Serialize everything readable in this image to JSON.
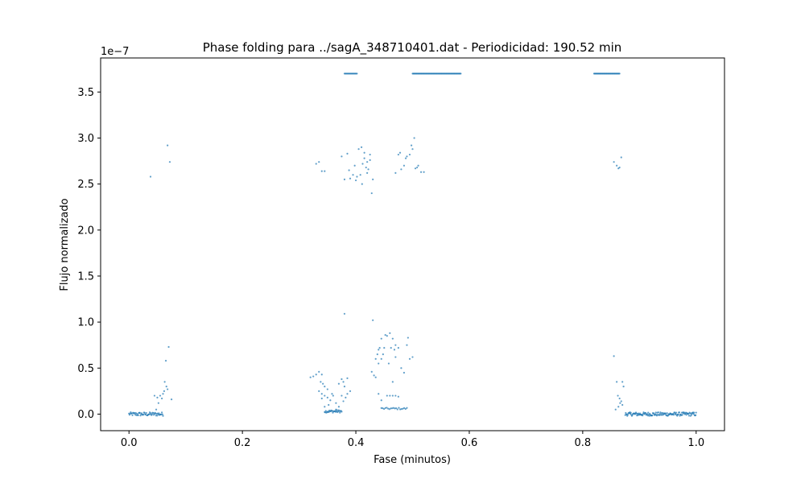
{
  "chart_data": {
    "type": "scatter",
    "title": "Phase folding para ../sagA_348710401.dat - Periodicidad: 190.52 min",
    "xlabel": "Fase (minutos)",
    "ylabel": "Flujo normalizado",
    "offset_text": "1e−7",
    "xlim": [
      -0.05,
      1.05
    ],
    "ylim": [
      -0.18,
      3.87
    ],
    "y_scale_exponent": -7,
    "xticks": [
      0.0,
      0.2,
      0.4,
      0.6,
      0.8,
      1.0
    ],
    "xtick_labels": [
      "0.0",
      "0.2",
      "0.4",
      "0.6",
      "0.8",
      "1.0"
    ],
    "yticks": [
      0.0,
      0.5,
      1.0,
      1.5,
      2.0,
      2.5,
      3.0,
      3.5
    ],
    "ytick_labels": [
      "0.0",
      "0.5",
      "1.0",
      "1.5",
      "2.0",
      "2.5",
      "3.0",
      "3.5"
    ],
    "grid": false,
    "marker_color": "#1f77b4",
    "bands": [
      {
        "x_start": 0.0,
        "x_end": 0.06,
        "y": 0.0,
        "spread": 0.02,
        "count": 60
      },
      {
        "x_start": 0.345,
        "x_end": 0.375,
        "y": 0.03,
        "spread": 0.015,
        "count": 30
      },
      {
        "x_start": 0.445,
        "x_end": 0.49,
        "y": 0.06,
        "spread": 0.01,
        "count": 20
      },
      {
        "x_start": 0.875,
        "x_end": 1.0,
        "y": 0.0,
        "spread": 0.02,
        "count": 140
      },
      {
        "x_start": 0.38,
        "x_end": 0.402,
        "y": 3.7,
        "spread": 0.0,
        "count": 18
      },
      {
        "x_start": 0.5,
        "x_end": 0.585,
        "y": 3.7,
        "spread": 0.0,
        "count": 80
      },
      {
        "x_start": 0.82,
        "x_end": 0.865,
        "y": 3.7,
        "spread": 0.0,
        "count": 45
      }
    ],
    "points": [
      [
        0.038,
        2.58
      ],
      [
        0.068,
        2.92
      ],
      [
        0.072,
        2.74
      ],
      [
        0.07,
        0.73
      ],
      [
        0.065,
        0.58
      ],
      [
        0.063,
        0.35
      ],
      [
        0.066,
        0.3
      ],
      [
        0.068,
        0.27
      ],
      [
        0.062,
        0.25
      ],
      [
        0.06,
        0.22
      ],
      [
        0.055,
        0.2
      ],
      [
        0.05,
        0.18
      ],
      [
        0.045,
        0.2
      ],
      [
        0.058,
        0.17
      ],
      [
        0.075,
        0.16
      ],
      [
        0.052,
        0.12
      ],
      [
        0.048,
        0.05
      ],
      [
        0.33,
        2.72
      ],
      [
        0.335,
        2.74
      ],
      [
        0.34,
        2.64
      ],
      [
        0.345,
        2.64
      ],
      [
        0.375,
        2.8
      ],
      [
        0.38,
        2.55
      ],
      [
        0.385,
        2.83
      ],
      [
        0.39,
        2.56
      ],
      [
        0.395,
        2.6
      ],
      [
        0.4,
        2.54
      ],
      [
        0.405,
        2.88
      ],
      [
        0.41,
        2.9
      ],
      [
        0.412,
        2.72
      ],
      [
        0.415,
        2.78
      ],
      [
        0.418,
        2.68
      ],
      [
        0.42,
        2.74
      ],
      [
        0.422,
        2.66
      ],
      [
        0.425,
        2.76
      ],
      [
        0.402,
        2.58
      ],
      [
        0.408,
        2.6
      ],
      [
        0.428,
        2.4
      ],
      [
        0.43,
        2.55
      ],
      [
        0.415,
        2.84
      ],
      [
        0.42,
        2.62
      ],
      [
        0.411,
        2.5
      ],
      [
        0.425,
        2.82
      ],
      [
        0.398,
        2.7
      ],
      [
        0.388,
        2.65
      ],
      [
        0.47,
        2.62
      ],
      [
        0.475,
        2.82
      ],
      [
        0.48,
        2.66
      ],
      [
        0.485,
        2.7
      ],
      [
        0.49,
        2.8
      ],
      [
        0.495,
        2.82
      ],
      [
        0.5,
        2.88
      ],
      [
        0.503,
        3.0
      ],
      [
        0.505,
        2.67
      ],
      [
        0.51,
        2.7
      ],
      [
        0.515,
        2.63
      ],
      [
        0.52,
        2.63
      ],
      [
        0.478,
        2.84
      ],
      [
        0.488,
        2.78
      ],
      [
        0.498,
        2.92
      ],
      [
        0.508,
        2.68
      ],
      [
        0.32,
        0.4
      ],
      [
        0.325,
        0.41
      ],
      [
        0.33,
        0.43
      ],
      [
        0.335,
        0.46
      ],
      [
        0.34,
        0.43
      ],
      [
        0.338,
        0.35
      ],
      [
        0.342,
        0.33
      ],
      [
        0.345,
        0.3
      ],
      [
        0.35,
        0.27
      ],
      [
        0.335,
        0.25
      ],
      [
        0.34,
        0.22
      ],
      [
        0.345,
        0.2
      ],
      [
        0.35,
        0.18
      ],
      [
        0.355,
        0.15
      ],
      [
        0.36,
        0.2
      ],
      [
        0.34,
        0.17
      ],
      [
        0.352,
        0.1
      ],
      [
        0.365,
        0.12
      ],
      [
        0.345,
        0.08
      ],
      [
        0.358,
        0.22
      ],
      [
        0.37,
        0.33
      ],
      [
        0.375,
        0.38
      ],
      [
        0.378,
        0.35
      ],
      [
        0.38,
        0.3
      ],
      [
        0.375,
        0.2
      ],
      [
        0.382,
        0.18
      ],
      [
        0.378,
        0.14
      ],
      [
        0.385,
        0.22
      ],
      [
        0.39,
        0.25
      ],
      [
        0.37,
        0.08
      ],
      [
        0.365,
        0.05
      ],
      [
        0.38,
        1.09
      ],
      [
        0.385,
        0.39
      ],
      [
        0.43,
        1.02
      ],
      [
        0.428,
        0.46
      ],
      [
        0.432,
        0.42
      ],
      [
        0.435,
        0.6
      ],
      [
        0.438,
        0.65
      ],
      [
        0.44,
        0.7
      ],
      [
        0.442,
        0.72
      ],
      [
        0.445,
        0.6
      ],
      [
        0.448,
        0.65
      ],
      [
        0.45,
        0.72
      ],
      [
        0.445,
        0.82
      ],
      [
        0.452,
        0.86
      ],
      [
        0.455,
        0.85
      ],
      [
        0.46,
        0.88
      ],
      [
        0.465,
        0.82
      ],
      [
        0.47,
        0.75
      ],
      [
        0.468,
        0.7
      ],
      [
        0.462,
        0.72
      ],
      [
        0.458,
        0.55
      ],
      [
        0.44,
        0.55
      ],
      [
        0.435,
        0.4
      ],
      [
        0.465,
        0.35
      ],
      [
        0.47,
        0.62
      ],
      [
        0.475,
        0.72
      ],
      [
        0.48,
        0.5
      ],
      [
        0.485,
        0.45
      ],
      [
        0.49,
        0.75
      ],
      [
        0.492,
        0.83
      ],
      [
        0.495,
        0.6
      ],
      [
        0.5,
        0.62
      ],
      [
        0.44,
        0.22
      ],
      [
        0.445,
        0.15
      ],
      [
        0.455,
        0.2
      ],
      [
        0.46,
        0.2
      ],
      [
        0.465,
        0.2
      ],
      [
        0.47,
        0.2
      ],
      [
        0.475,
        0.19
      ],
      [
        0.855,
        2.74
      ],
      [
        0.86,
        2.7
      ],
      [
        0.863,
        2.67
      ],
      [
        0.865,
        2.68
      ],
      [
        0.868,
        2.79
      ],
      [
        0.855,
        0.63
      ],
      [
        0.86,
        0.35
      ],
      [
        0.87,
        0.35
      ],
      [
        0.872,
        0.3
      ],
      [
        0.862,
        0.2
      ],
      [
        0.865,
        0.17
      ],
      [
        0.868,
        0.14
      ],
      [
        0.87,
        0.1
      ],
      [
        0.858,
        0.05
      ],
      [
        0.863,
        0.08
      ],
      [
        0.866,
        0.12
      ]
    ]
  }
}
